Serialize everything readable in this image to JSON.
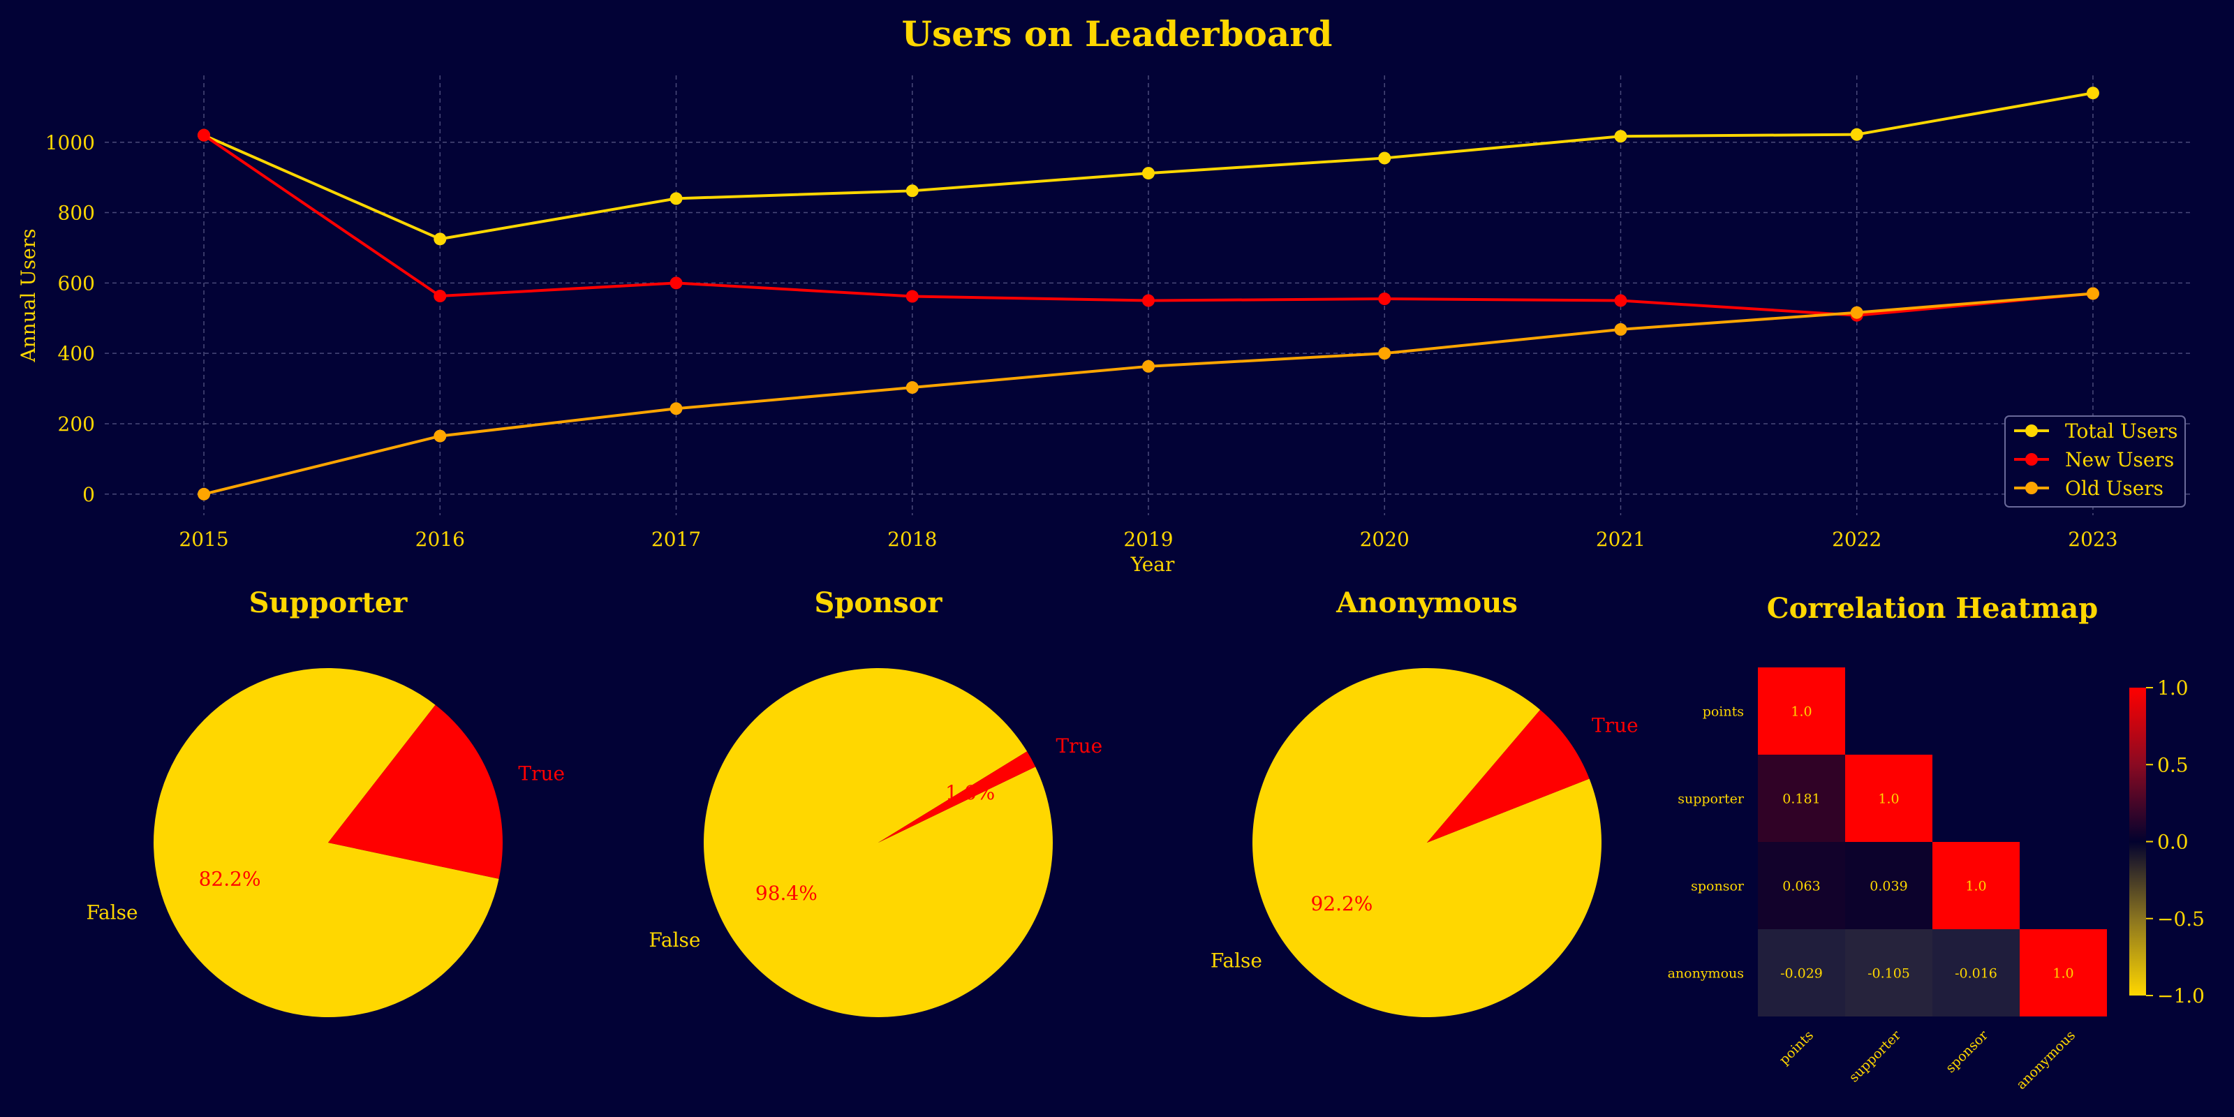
{
  "colors": {
    "background": "#020236",
    "gold": "#FFD700",
    "red": "#FF0000",
    "orange": "#FFA500",
    "grid": "#4a4a7a"
  },
  "chart_data": [
    {
      "type": "line",
      "title": "Users on Leaderboard",
      "xlabel": "Year",
      "ylabel": "Annual Users",
      "x": [
        2015,
        2016,
        2017,
        2018,
        2019,
        2020,
        2021,
        2022,
        2023
      ],
      "yticks": [
        0,
        200,
        400,
        600,
        800,
        1000
      ],
      "ylim": [
        -60,
        1190
      ],
      "grid": true,
      "legend_position": "lower-right",
      "series": [
        {
          "name": "Total Users",
          "color": "#FFD700",
          "values": [
            1020,
            725,
            840,
            862,
            912,
            955,
            1017,
            1022,
            1140
          ]
        },
        {
          "name": "New Users",
          "color": "#FF0000",
          "values": [
            1020,
            563,
            600,
            562,
            550,
            555,
            550,
            508,
            570
          ]
        },
        {
          "name": "Old Users",
          "color": "#FFA500",
          "values": [
            0,
            165,
            243,
            303,
            363,
            400,
            468,
            516,
            570
          ]
        }
      ]
    },
    {
      "type": "pie",
      "title": "Supporter",
      "labels": [
        "False",
        "True"
      ],
      "values": [
        82.2,
        17.8
      ],
      "pct_labels": [
        "82.2%",
        "17.8%"
      ],
      "colors": [
        "#FFD700",
        "#FF0000"
      ]
    },
    {
      "type": "pie",
      "title": "Sponsor",
      "labels": [
        "False",
        "True"
      ],
      "values": [
        98.4,
        1.6
      ],
      "pct_labels": [
        "98.4%",
        "1.6%"
      ],
      "colors": [
        "#FFD700",
        "#FF0000"
      ]
    },
    {
      "type": "pie",
      "title": "Anonymous",
      "labels": [
        "False",
        "True"
      ],
      "values": [
        92.2,
        7.8
      ],
      "pct_labels": [
        "92.2%",
        "7.8%"
      ],
      "colors": [
        "#FFD700",
        "#FF0000"
      ]
    },
    {
      "type": "heatmap",
      "title": "Correlation Heatmap",
      "rows": [
        "points",
        "supporter",
        "sponsor",
        "anonymous"
      ],
      "cols": [
        "points",
        "supporter",
        "sponsor",
        "anonymous"
      ],
      "values": [
        [
          1.0,
          null,
          null,
          null
        ],
        [
          0.181,
          1.0,
          null,
          null
        ],
        [
          0.063,
          0.039,
          1.0,
          null
        ],
        [
          -0.029,
          -0.105,
          -0.016,
          1.0
        ]
      ],
      "cell_labels": [
        [
          "1.0",
          "",
          "",
          ""
        ],
        [
          "0.181",
          "1.0",
          "",
          ""
        ],
        [
          "0.063",
          "0.039",
          "1.0",
          ""
        ],
        [
          "-0.029",
          "-0.105",
          "-0.016",
          "1.0"
        ]
      ],
      "colorbar_ticks": [
        "1.0",
        "0.5",
        "0.0",
        "−0.5",
        "−1.0"
      ],
      "vmin": -1.0,
      "vmax": 1.0
    }
  ]
}
